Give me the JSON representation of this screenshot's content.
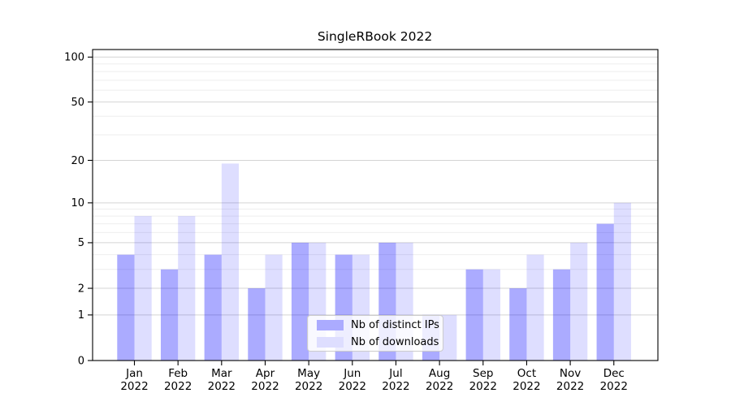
{
  "title": "SingleRBook 2022",
  "chart_data": {
    "type": "bar",
    "title": "SingleRBook 2022",
    "scale": "log1p",
    "categories": [
      "Jan",
      "Feb",
      "Mar",
      "Apr",
      "May",
      "Jun",
      "Jul",
      "Aug",
      "Sep",
      "Oct",
      "Nov",
      "Dec"
    ],
    "year_label": "2022",
    "series": [
      {
        "name": "Nb of distinct IPs",
        "legend_color": "#ababff",
        "bar_color": "rgba(0,0,255,0.33)",
        "values": [
          4,
          3,
          4,
          2,
          5,
          4,
          5,
          1,
          3,
          2,
          3,
          7
        ]
      },
      {
        "name": "Nb of downloads",
        "legend_color": "#dedeff",
        "bar_color": "rgba(0,0,255,0.13)",
        "values": [
          8,
          8,
          19,
          4,
          5,
          4,
          5,
          1,
          3,
          4,
          5,
          10
        ]
      }
    ],
    "ytick_values": [
      0,
      1,
      2,
      5,
      10,
      20,
      50,
      100
    ],
    "ytick_labels": [
      "0",
      "1",
      "2",
      "5",
      "10",
      "20",
      "50",
      "100"
    ],
    "grid_major_values": [
      1,
      2,
      5,
      10,
      20,
      50,
      100
    ],
    "grid_minor_values": [
      3,
      4,
      6,
      7,
      8,
      9,
      30,
      40,
      60,
      70,
      80,
      90
    ],
    "grid_major_color": "#d4d4d4",
    "grid_minor_color": "#eeeeee",
    "axis_color": "#000000",
    "text_color": "#000000",
    "ylim_top": 110,
    "legend_position": "lower center",
    "grid": "on"
  }
}
